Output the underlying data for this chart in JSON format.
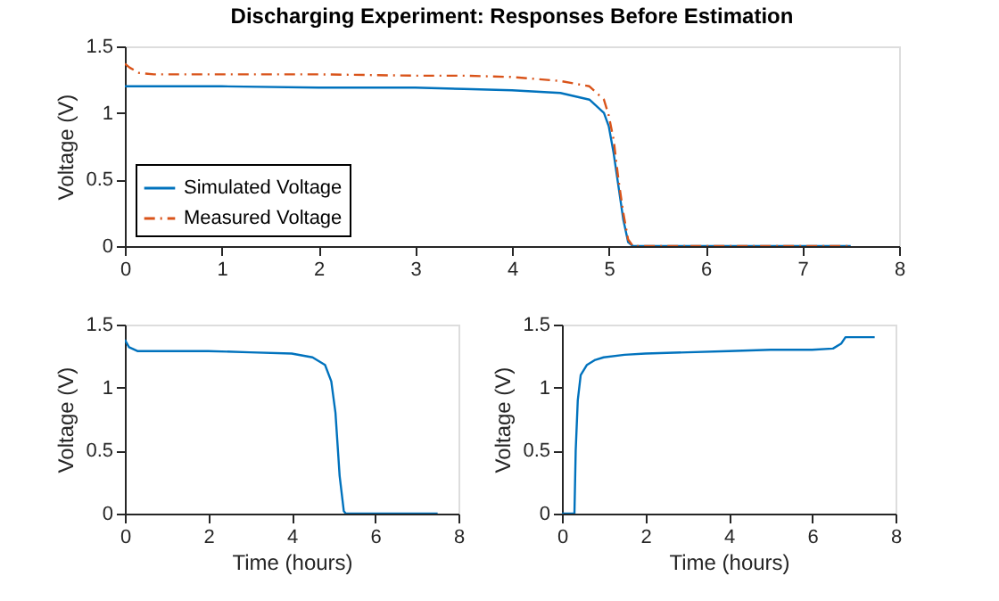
{
  "chart_data": [
    {
      "type": "line",
      "title": "Discharging Experiment: Responses Before Estimation",
      "ylabel": "Voltage (V)",
      "xlim": [
        0,
        8
      ],
      "xticks": [
        0,
        1,
        2,
        3,
        4,
        5,
        6,
        7,
        8
      ],
      "ylim": [
        0,
        1.5
      ],
      "yticks": [
        0,
        0.5,
        1,
        1.5
      ],
      "grid": false,
      "legend": "bottom left",
      "marker": "none",
      "series": [
        {
          "name": "Simulated Voltage",
          "color": "#0072bd",
          "line_style": "solid",
          "x": [
            0,
            1,
            2,
            3,
            3.5,
            4,
            4.5,
            4.8,
            4.95,
            5.0,
            5.05,
            5.1,
            5.15,
            5.2,
            5.25,
            7.5
          ],
          "values": [
            1.2,
            1.2,
            1.19,
            1.19,
            1.18,
            1.17,
            1.15,
            1.1,
            1.0,
            0.9,
            0.7,
            0.45,
            0.2,
            0.03,
            0,
            0
          ]
        },
        {
          "name": "Measured Voltage",
          "color": "#d95319",
          "line_style": "dashdot",
          "x": [
            0,
            0.05,
            0.15,
            0.3,
            1,
            2,
            3,
            3.5,
            4,
            4.5,
            4.8,
            4.95,
            5.0,
            5.05,
            5.1,
            5.15,
            5.2,
            5.25,
            7.5
          ],
          "values": [
            1.37,
            1.34,
            1.3,
            1.29,
            1.29,
            1.29,
            1.28,
            1.28,
            1.27,
            1.24,
            1.2,
            1.1,
            0.98,
            0.8,
            0.5,
            0.25,
            0.05,
            0,
            0
          ]
        }
      ]
    },
    {
      "type": "line",
      "xlabel": "Time (hours)",
      "ylabel": "Voltage (V)",
      "xlim": [
        0,
        8
      ],
      "xticks": [
        0,
        2,
        4,
        6,
        8
      ],
      "ylim": [
        0,
        1.5
      ],
      "yticks": [
        0,
        0.5,
        1,
        1.5
      ],
      "grid": false,
      "marker": "none",
      "series": [
        {
          "color": "#0072bd",
          "line_style": "solid",
          "x": [
            0,
            0.1,
            0.3,
            1,
            2,
            3,
            4,
            4.5,
            4.8,
            4.95,
            5.05,
            5.15,
            5.25,
            5.3,
            7.5
          ],
          "values": [
            1.38,
            1.32,
            1.29,
            1.29,
            1.29,
            1.28,
            1.27,
            1.24,
            1.18,
            1.05,
            0.8,
            0.3,
            0.02,
            0,
            0
          ]
        }
      ]
    },
    {
      "type": "line",
      "xlabel": "Time (hours)",
      "ylabel": "Voltage (V)",
      "xlim": [
        0,
        8
      ],
      "xticks": [
        0,
        2,
        4,
        6,
        8
      ],
      "ylim": [
        0,
        1.5
      ],
      "yticks": [
        0,
        0.5,
        1,
        1.5
      ],
      "grid": false,
      "marker": "none",
      "series": [
        {
          "color": "#0072bd",
          "line_style": "solid",
          "x": [
            0,
            0.3,
            0.33,
            0.38,
            0.45,
            0.6,
            0.8,
            1,
            1.5,
            2,
            3,
            4,
            5,
            6,
            6.5,
            6.7,
            6.8,
            7.5
          ],
          "values": [
            0,
            0,
            0.5,
            0.9,
            1.1,
            1.18,
            1.22,
            1.24,
            1.26,
            1.27,
            1.28,
            1.29,
            1.3,
            1.3,
            1.31,
            1.35,
            1.4,
            1.4
          ]
        }
      ]
    }
  ]
}
